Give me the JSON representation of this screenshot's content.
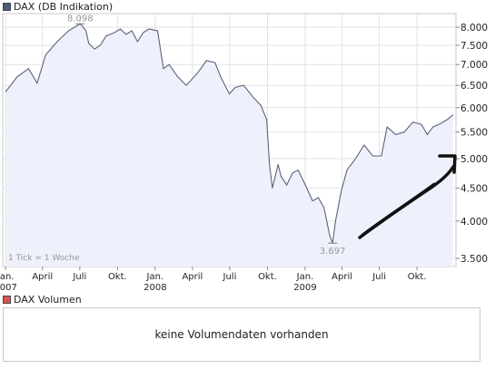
{
  "price_panel": {
    "legend_label": "DAX (DB Indikation)",
    "legend_color": "#4a5a78",
    "tick_note": "1 Tick = 1 Woche"
  },
  "volume_panel": {
    "legend_label": "DAX Volumen",
    "legend_color": "#d9534f",
    "message": "keine Volumendaten vorhanden"
  },
  "chart_data": {
    "type": "area",
    "series": [
      {
        "color": "#5a6378",
        "x": [
          "2007-01-01",
          "2007-01-29",
          "2007-02-26",
          "2007-03-19",
          "2007-04-09",
          "2007-05-07",
          "2007-06-04",
          "2007-06-18",
          "2007-07-02",
          "2007-07-16",
          "2007-07-23",
          "2007-08-06",
          "2007-08-20",
          "2007-09-03",
          "2007-09-24",
          "2007-10-08",
          "2007-10-22",
          "2007-11-05",
          "2007-11-19",
          "2007-12-03",
          "2007-12-17",
          "2008-01-07",
          "2008-01-21",
          "2008-02-04",
          "2008-02-25",
          "2008-03-17",
          "2008-04-14",
          "2008-05-05",
          "2008-05-26",
          "2008-06-09",
          "2008-06-30",
          "2008-07-14",
          "2008-08-04",
          "2008-08-25",
          "2008-09-15",
          "2008-09-29",
          "2008-10-06",
          "2008-10-13",
          "2008-10-27",
          "2008-11-03",
          "2008-11-17",
          "2008-12-01",
          "2008-12-15",
          "2009-01-05",
          "2009-01-19",
          "2009-02-02",
          "2009-02-16",
          "2009-03-02",
          "2009-03-09",
          "2009-03-16",
          "2009-03-30",
          "2009-04-13",
          "2009-05-04",
          "2009-05-25",
          "2009-06-15",
          "2009-07-06",
          "2009-07-20",
          "2009-08-10",
          "2009-08-31",
          "2009-09-21",
          "2009-10-12",
          "2009-10-26",
          "2009-11-09",
          "2009-11-23",
          "2009-12-14",
          "2009-12-28"
        ],
        "values": [
          6350,
          6700,
          6900,
          6550,
          7250,
          7600,
          7900,
          8000,
          8098,
          7900,
          7550,
          7400,
          7500,
          7750,
          7850,
          7950,
          7800,
          7900,
          7600,
          7850,
          7950,
          7900,
          6900,
          7000,
          6700,
          6500,
          6800,
          7100,
          7050,
          6700,
          6300,
          6450,
          6500,
          6250,
          6050,
          5750,
          4900,
          4500,
          4900,
          4700,
          4550,
          4750,
          4800,
          4500,
          4300,
          4350,
          4200,
          3800,
          3697,
          4000,
          4450,
          4800,
          5000,
          5250,
          5050,
          5050,
          5600,
          5450,
          5500,
          5700,
          5650,
          5450,
          5600,
          5650,
          5750,
          5850
        ]
      }
    ],
    "annotations": [
      {
        "label": "8.098",
        "x": "2007-07-02",
        "y": 8098
      },
      {
        "label": "3.697",
        "x": "2009-03-09",
        "y": 3697
      }
    ],
    "y_ticks": [
      "3.500",
      "4.000",
      "4.500",
      "5.000",
      "5.500",
      "6.000",
      "6.500",
      "7.000",
      "7.500",
      "8.000"
    ],
    "y_tick_values": [
      3500,
      4000,
      4500,
      5000,
      5500,
      6000,
      6500,
      7000,
      7500,
      8000
    ],
    "y_scale": "log",
    "ylim": [
      3400,
      8400
    ],
    "xlim": [
      "2006-12-25",
      "2010-01-04"
    ],
    "x_ticks": [
      {
        "label": "Jan.",
        "sublabel": "2007",
        "x": "2007-01-01"
      },
      {
        "label": "April",
        "sublabel": "",
        "x": "2007-04-01"
      },
      {
        "label": "Juli",
        "sublabel": "",
        "x": "2007-07-01"
      },
      {
        "label": "Okt.",
        "sublabel": "",
        "x": "2007-10-01"
      },
      {
        "label": "Jan.",
        "sublabel": "2008",
        "x": "2008-01-01"
      },
      {
        "label": "April",
        "sublabel": "",
        "x": "2008-04-01"
      },
      {
        "label": "Juli",
        "sublabel": "",
        "x": "2008-07-01"
      },
      {
        "label": "Okt.",
        "sublabel": "",
        "x": "2008-10-01"
      },
      {
        "label": "Jan.",
        "sublabel": "2009",
        "x": "2009-01-01"
      },
      {
        "label": "April",
        "sublabel": "",
        "x": "2009-04-01"
      },
      {
        "label": "Juli",
        "sublabel": "",
        "x": "2009-07-01"
      },
      {
        "label": "Okt.",
        "sublabel": "",
        "x": "2009-10-01"
      }
    ],
    "grid": true,
    "area_fill": "#eef0fb"
  }
}
